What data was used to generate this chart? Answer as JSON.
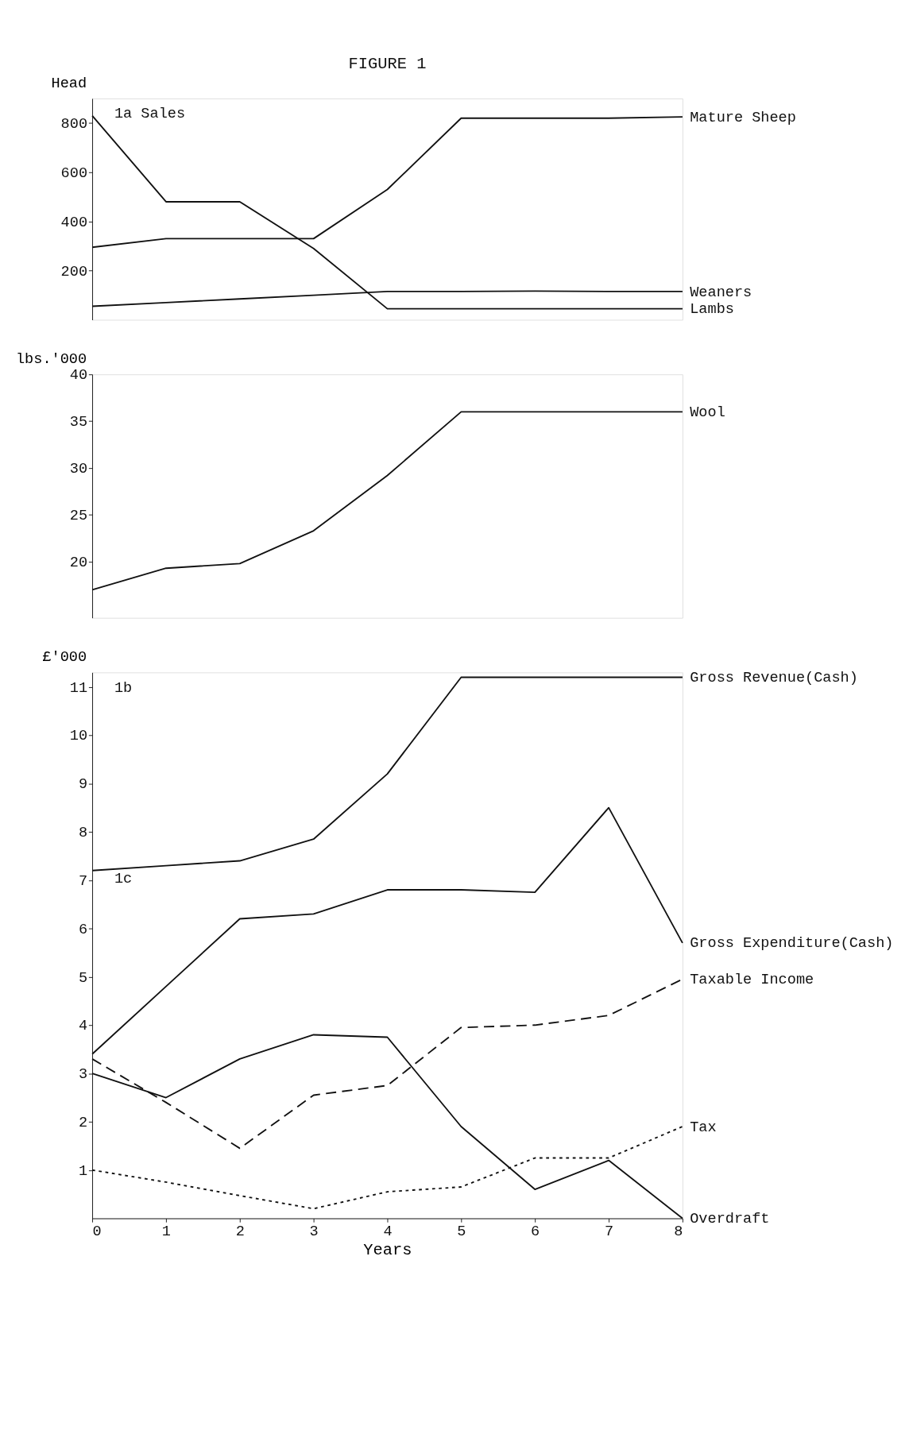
{
  "chart_data": [
    {
      "type": "line",
      "title": "FIGURE 1",
      "ylabel": "Head",
      "annotations": [
        "1a Sales"
      ],
      "x": [
        0,
        1,
        2,
        3,
        4,
        5,
        6,
        7,
        8
      ],
      "xlim": [
        0,
        8
      ],
      "ylim": [
        0,
        900
      ],
      "yticks": [
        200,
        400,
        600,
        800
      ],
      "tick_labels": "y",
      "grid": false,
      "line_style": "solid",
      "series": [
        {
          "name": "Mature Sheep",
          "color": "#111111",
          "values": [
            295,
            330,
            330,
            330,
            530,
            820,
            820,
            820,
            825
          ]
        },
        {
          "name": "Weaners",
          "color": "#111111",
          "values": [
            55,
            70,
            85,
            100,
            115,
            115,
            117,
            115,
            115
          ]
        },
        {
          "name": "Lambs",
          "color": "#111111",
          "values": [
            830,
            480,
            480,
            290,
            45,
            45,
            45,
            45,
            45
          ]
        }
      ]
    },
    {
      "type": "line",
      "ylabel": "lbs.'000",
      "x": [
        0,
        1,
        2,
        3,
        4,
        5,
        6,
        7,
        8
      ],
      "xlim": [
        0,
        8
      ],
      "ylim": [
        14,
        40
      ],
      "yticks": [
        20,
        25,
        30,
        35,
        40
      ],
      "tick_labels": "y",
      "grid": false,
      "line_style": "solid",
      "series": [
        {
          "name": "Wool",
          "color": "#111111",
          "values": [
            17,
            19.3,
            19.8,
            23.3,
            29.2,
            36,
            36,
            36,
            36
          ]
        }
      ]
    },
    {
      "type": "line",
      "ylabel": "£'000",
      "xlabel": "Years",
      "annotations": [
        "1b",
        "1c"
      ],
      "x": [
        0,
        1,
        2,
        3,
        4,
        5,
        6,
        7,
        8
      ],
      "xlim": [
        0,
        8
      ],
      "xticks": [
        0,
        1,
        2,
        3,
        4,
        5,
        6,
        7,
        8
      ],
      "ylim": [
        0,
        11.3
      ],
      "yticks": [
        1,
        2,
        3,
        4,
        5,
        6,
        7,
        8,
        9,
        10,
        11
      ],
      "grid": false,
      "series": [
        {
          "name": "Gross Revenue(Cash)",
          "color": "#111111",
          "line_style": "solid",
          "values": [
            7.2,
            7.3,
            7.4,
            7.85,
            9.2,
            11.2,
            11.2,
            11.2,
            11.2
          ]
        },
        {
          "name": "Gross Expenditure(Cash)",
          "color": "#111111",
          "line_style": "solid",
          "values": [
            3.4,
            4.8,
            6.2,
            6.3,
            6.8,
            6.8,
            6.75,
            8.5,
            5.7
          ]
        },
        {
          "name": "Taxable Income",
          "color": "#111111",
          "line_style": "dashed",
          "values": [
            3.3,
            2.4,
            1.45,
            2.55,
            2.75,
            3.95,
            4.0,
            4.2,
            4.95
          ]
        },
        {
          "name": "Tax",
          "color": "#111111",
          "line_style": "dotted",
          "values": [
            1.0,
            0.75,
            0.47,
            0.2,
            0.55,
            0.65,
            1.25,
            1.25,
            1.9
          ]
        },
        {
          "name": "Overdraft",
          "color": "#111111",
          "line_style": "solid",
          "values": [
            3.0,
            2.5,
            3.3,
            3.8,
            3.75,
            1.9,
            0.6,
            1.2,
            0
          ]
        }
      ]
    }
  ]
}
